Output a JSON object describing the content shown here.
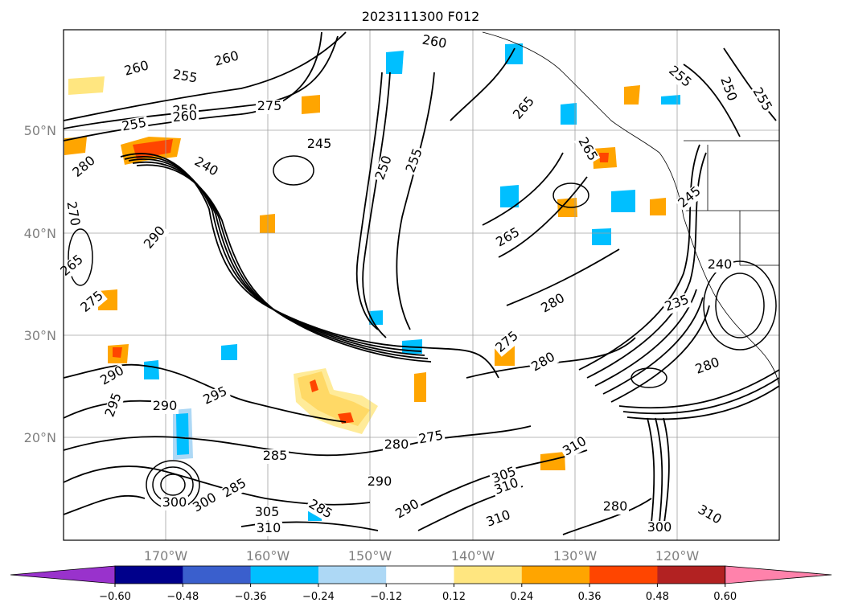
{
  "title": "2023111300 F012",
  "map": {
    "lat_labels": [
      "50°N",
      "40°N",
      "30°N",
      "20°N"
    ],
    "lon_labels": [
      "170°W",
      "160°W",
      "150°W",
      "140°W",
      "130°W",
      "120°W"
    ]
  },
  "colorbar": {
    "tick_labels": [
      "−0.60",
      "−0.48",
      "−0.36",
      "−0.24",
      "−0.12",
      "0.12",
      "0.24",
      "0.36",
      "0.48",
      "0.60"
    ],
    "colors": [
      "#9932cc",
      "#00008b",
      "#3a5fcd",
      "#00bfff",
      "#add8f5",
      "#ffffff",
      "#ffe680",
      "#ffa500",
      "#ff4500",
      "#b22222",
      "#ff82ab"
    ]
  },
  "contour_labels": [
    {
      "text": "260"
    },
    {
      "text": "260"
    },
    {
      "text": "255"
    },
    {
      "text": "250"
    },
    {
      "text": "260"
    },
    {
      "text": "255"
    },
    {
      "text": "275"
    },
    {
      "text": "245"
    },
    {
      "text": "240"
    },
    {
      "text": "280"
    },
    {
      "text": "270"
    },
    {
      "text": "290"
    },
    {
      "text": "265"
    },
    {
      "text": "275"
    },
    {
      "text": "290"
    },
    {
      "text": "295"
    },
    {
      "text": "290"
    },
    {
      "text": "300"
    },
    {
      "text": "300"
    },
    {
      "text": "285"
    },
    {
      "text": "285"
    },
    {
      "text": "295"
    },
    {
      "text": "305"
    },
    {
      "text": "310"
    },
    {
      "text": "280"
    },
    {
      "text": "275"
    },
    {
      "text": "290"
    },
    {
      "text": "285"
    },
    {
      "text": "290"
    },
    {
      "text": "260"
    },
    {
      "text": "250"
    },
    {
      "text": "255"
    },
    {
      "text": "265"
    },
    {
      "text": "275"
    },
    {
      "text": "280"
    },
    {
      "text": "280"
    },
    {
      "text": "305"
    },
    {
      "text": "310"
    },
    {
      "text": "310"
    },
    {
      "text": "265"
    },
    {
      "text": "255"
    },
    {
      "text": "250"
    },
    {
      "text": "255"
    },
    {
      "text": "245"
    },
    {
      "text": "240"
    },
    {
      "text": "235"
    },
    {
      "text": "280"
    },
    {
      "text": "310"
    },
    {
      "text": "310"
    },
    {
      "text": "300"
    },
    {
      "text": "280"
    },
    {
      "text": "265"
    }
  ]
}
